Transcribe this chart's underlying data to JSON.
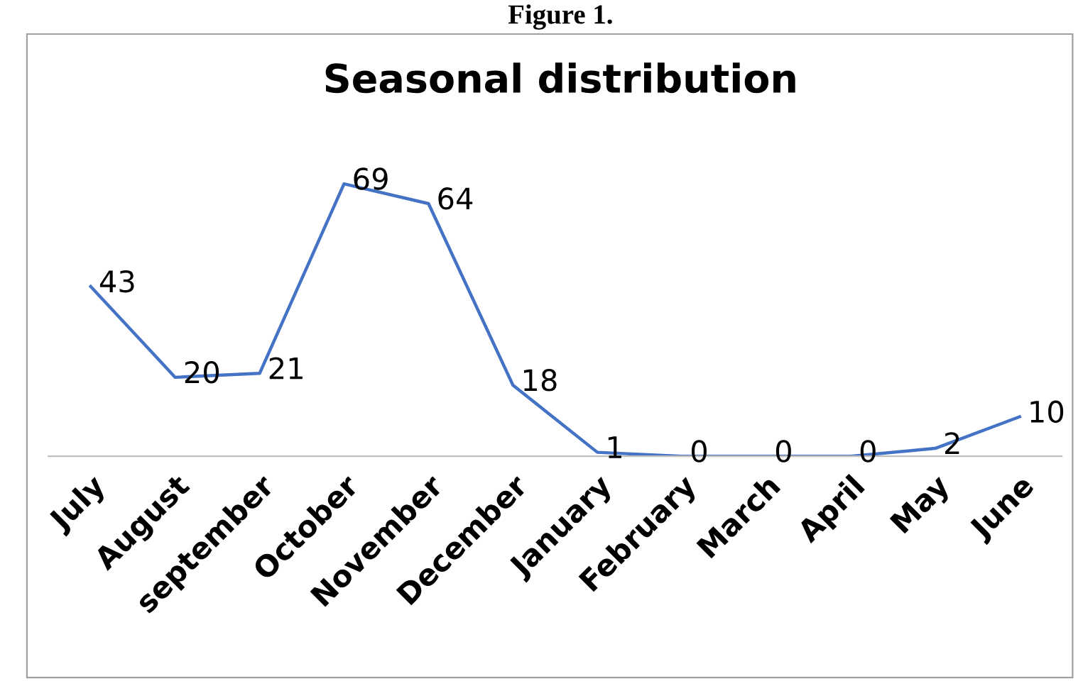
{
  "chart_data": {
    "type": "line",
    "title": "Seasonal distribution",
    "annotations": [
      "Figure 1."
    ],
    "categories": [
      "July",
      "August",
      "september",
      "October",
      "November",
      "December",
      "January",
      "February",
      "March",
      "April",
      "May",
      "June"
    ],
    "values": [
      43,
      20,
      21,
      69,
      64,
      18,
      1,
      0,
      0,
      0,
      2,
      10
    ],
    "color": "#4472c4",
    "data_labels": true,
    "marker": "none",
    "line_style": "solid",
    "grid": false,
    "legend": false
  }
}
